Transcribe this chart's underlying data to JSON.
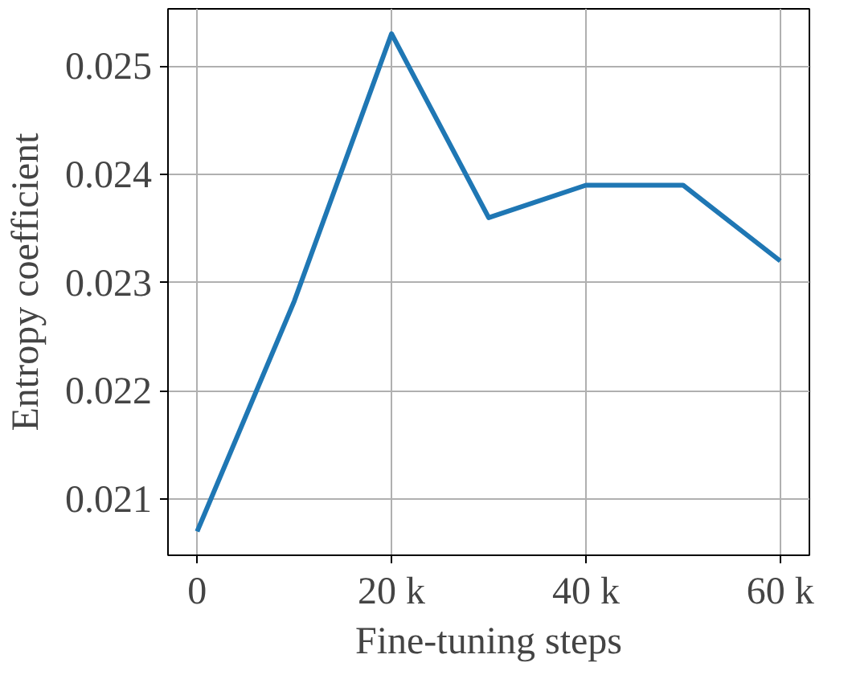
{
  "chart_data": {
    "type": "line",
    "xlabel": "Fine-tuning steps",
    "ylabel": "Entropy coefficient",
    "x": [
      0,
      10000,
      20000,
      30000,
      40000,
      50000,
      60000
    ],
    "series": [
      {
        "color": "#1f77b4",
        "values": [
          0.0207,
          0.02283,
          0.0253,
          0.0236,
          0.0239,
          0.0239,
          0.0232
        ]
      }
    ],
    "xlim": [
      -3000,
      63000
    ],
    "ylim": [
      0.02048,
      0.02553
    ],
    "xticks": [
      0,
      {
        "value": 20000,
        "label": "20 k"
      },
      {
        "value": 40000,
        "label": "40 k"
      },
      {
        "value": 60000,
        "label": "60 k"
      }
    ],
    "yticks": [
      0.021,
      0.022,
      0.023,
      0.024,
      0.025
    ],
    "grid": true,
    "line_style": "solid"
  }
}
